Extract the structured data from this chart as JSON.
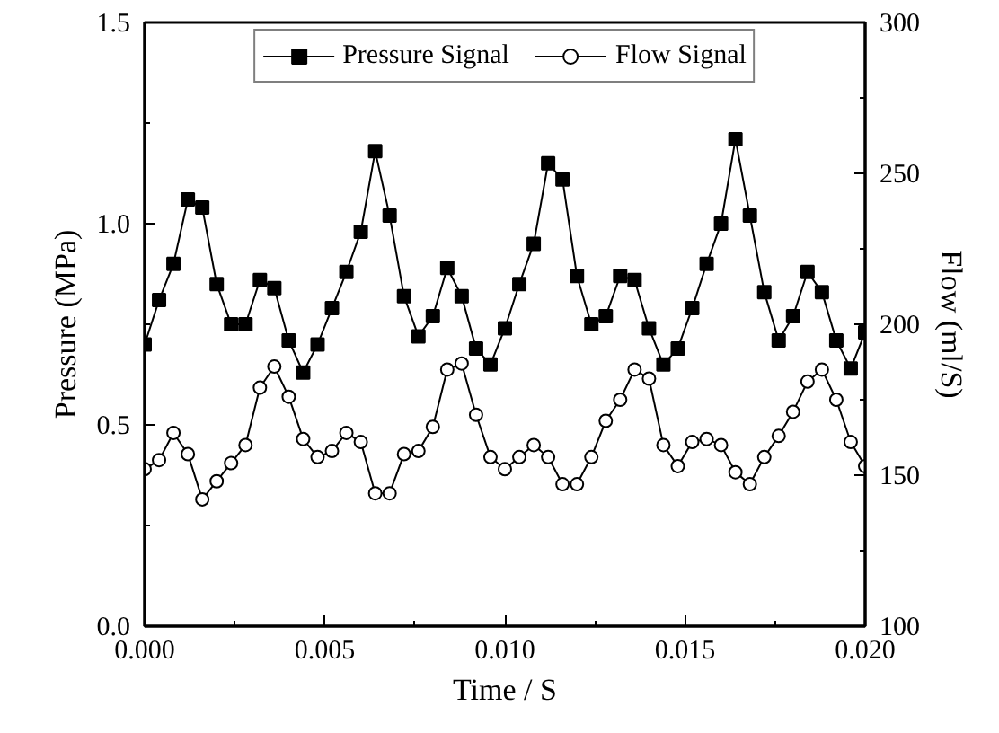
{
  "chart_data": {
    "type": "line",
    "xlabel": "Time / S",
    "ylabel": "Pressure (MPa)",
    "y2label": "Flow (ml/S)",
    "x": [
      0,
      0.0004,
      0.0008,
      0.0012,
      0.0016,
      0.002,
      0.0024,
      0.0028,
      0.0032,
      0.0036,
      0.004,
      0.0044,
      0.0048,
      0.0052,
      0.0056,
      0.006,
      0.0064,
      0.0068,
      0.0072,
      0.0076,
      0.008,
      0.0084,
      0.0088,
      0.0092,
      0.0096,
      0.01,
      0.0104,
      0.0108,
      0.0112,
      0.0116,
      0.012,
      0.0124,
      0.0128,
      0.0132,
      0.0136,
      0.014,
      0.0144,
      0.0148,
      0.0152,
      0.0156,
      0.016,
      0.0164,
      0.0168,
      0.0172,
      0.0176,
      0.018,
      0.0184,
      0.0188,
      0.0192,
      0.0196,
      0.02
    ],
    "series": [
      {
        "name": "Pressure Signal",
        "color": "#000000",
        "marker": "square",
        "values": [
          0.7,
          0.81,
          0.9,
          1.06,
          1.04,
          0.85,
          0.75,
          0.75,
          0.86,
          0.84,
          0.71,
          0.63,
          0.7,
          0.79,
          0.88,
          0.98,
          1.18,
          1.02,
          0.82,
          0.72,
          0.77,
          0.89,
          0.82,
          0.69,
          0.65,
          0.74,
          0.85,
          0.95,
          1.15,
          1.11,
          0.87,
          0.75,
          0.77,
          0.87,
          0.86,
          0.74,
          0.65,
          0.69,
          0.79,
          0.9,
          1.0,
          1.21,
          1.02,
          0.83,
          0.71,
          0.77,
          0.88,
          0.83,
          0.71,
          0.64,
          0.73
        ]
      },
      {
        "name": "Flow Signal",
        "color": "#000000",
        "marker": "circle",
        "axis": "y2",
        "values": [
          152,
          155,
          164,
          157,
          142,
          148,
          154,
          160,
          179,
          186,
          176,
          162,
          156,
          158,
          164,
          161,
          144,
          144,
          157,
          158,
          166,
          185,
          187,
          170,
          156,
          152,
          156,
          160,
          156,
          147,
          147,
          156,
          168,
          175,
          185,
          182,
          160,
          153,
          161,
          162,
          160,
          151,
          147,
          156,
          163,
          171,
          181,
          185,
          175,
          161,
          153
        ]
      }
    ],
    "xlim": [
      0,
      0.02
    ],
    "xticks": [
      {
        "value": 0,
        "label": "0.000"
      },
      {
        "value": 0.005,
        "label": "0.005"
      },
      {
        "value": 0.01,
        "label": "0.010"
      },
      {
        "value": 0.015,
        "label": "0.015"
      },
      {
        "value": 0.02,
        "label": "0.020"
      }
    ],
    "ylim": [
      0,
      1.5
    ],
    "yticks": [
      {
        "value": 0,
        "label": "0.0"
      },
      {
        "value": 0.5,
        "label": "0.5"
      },
      {
        "value": 1,
        "label": "1.0"
      },
      {
        "value": 1.5,
        "label": "1.5"
      }
    ],
    "y2lim": [
      100,
      300
    ],
    "y2ticks": [
      100,
      150,
      200,
      250,
      300
    ],
    "legend": "top",
    "grid": false,
    "line_style": "solid"
  }
}
